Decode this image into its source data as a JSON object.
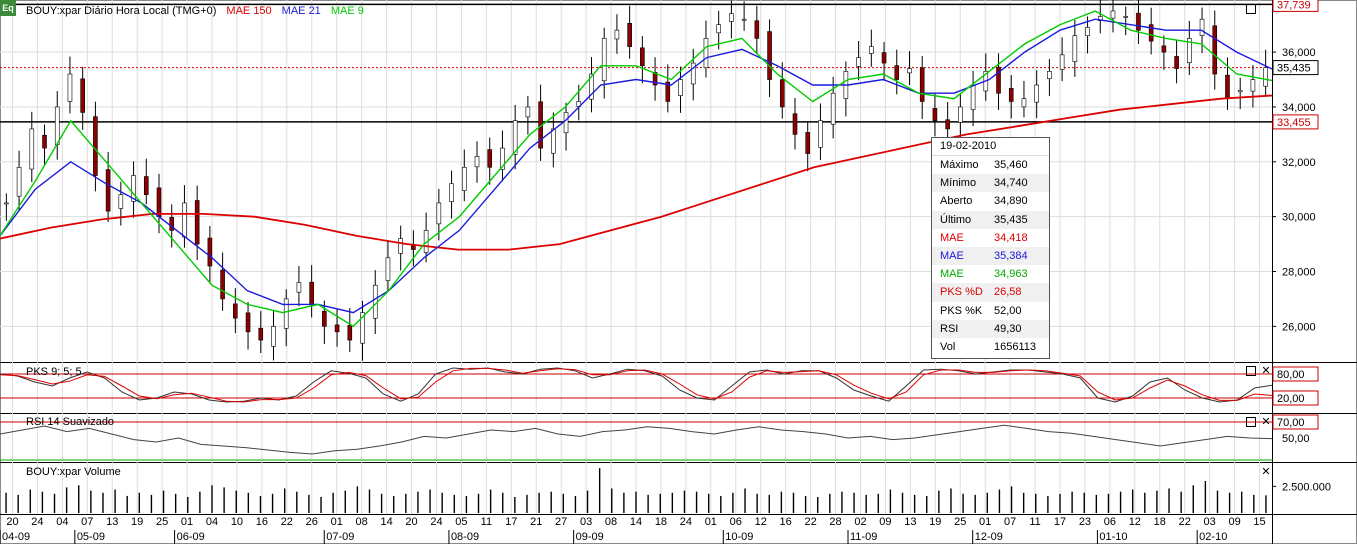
{
  "window": {
    "logo": "Eq"
  },
  "header": {
    "instrument": "BOUY:xpar Diário Hora Local (TMG+0)",
    "ind1": "MAE 150",
    "ind2": "MAE 21",
    "ind3": "MAE 9"
  },
  "colors": {
    "mae150": "#dd0000",
    "mae21": "#1a1adc",
    "mae9": "#00cc00",
    "candle_up": "#ffffff",
    "candle_down": "#8b0000",
    "hline": "#cc0000"
  },
  "chart_data": [
    {
      "type": "candlestick",
      "panel": "price",
      "ylim": [
        24.7,
        37.9
      ],
      "yticks": [
        "36,000",
        "34,000",
        "32,000",
        "30,000",
        "28,000",
        "26,000"
      ],
      "price_labels": [
        "37,739",
        "35,435",
        "33,455"
      ],
      "x_labels": [
        "20",
        "24",
        "04",
        "07",
        "13",
        "19",
        "25",
        "01",
        "04",
        "10",
        "16",
        "22",
        "26",
        "01",
        "08",
        "14",
        "20",
        "24",
        "05",
        "11",
        "17",
        "21",
        "27",
        "03",
        "08",
        "14",
        "18",
        "24",
        "01",
        "06",
        "12",
        "16",
        "22",
        "28",
        "02",
        "09",
        "13",
        "19",
        "25",
        "01",
        "07",
        "11",
        "17",
        "23",
        "06",
        "12",
        "18",
        "22",
        "03",
        "09",
        "15"
      ],
      "month_labels": [
        "04-09",
        "05-09",
        "06-09",
        "07-09",
        "08-09",
        "09-09",
        "10-09",
        "11-09",
        "12-09",
        "01-10",
        "02-10"
      ],
      "close_approx": [
        30.5,
        31.8,
        33.2,
        32.5,
        34.0,
        35.2,
        33.8,
        31.5,
        30.2,
        30.8,
        31.5,
        30.8,
        30.0,
        29.5,
        30.5,
        29.0,
        28.2,
        27.0,
        26.3,
        25.8,
        25.5,
        26.0,
        27.0,
        27.6,
        26.8,
        26.0,
        25.8,
        25.5,
        26.5,
        27.5,
        28.5,
        29.2,
        28.8,
        29.5,
        30.5,
        31.2,
        31.8,
        32.2,
        31.8,
        32.5,
        33.5,
        34.0,
        32.5,
        33.2,
        33.8,
        34.2,
        35.2,
        36.5,
        36.8,
        36.2,
        35.5,
        34.8,
        34.2,
        35.0,
        35.6,
        36.5,
        37.0,
        37.4,
        37.2,
        36.5,
        35.0,
        34.0,
        33.0,
        32.3,
        33.5,
        34.5,
        35.3,
        35.8,
        36.2,
        35.6,
        35.0,
        35.4,
        34.2,
        33.5,
        33.2,
        34.0,
        34.8,
        35.3,
        34.5,
        34.2,
        34.3,
        34.8,
        35.3,
        35.9,
        36.6,
        36.9,
        37.3,
        37.5,
        37.3,
        36.8,
        36.4,
        36.0,
        35.4,
        36.5,
        37.2,
        35.2,
        34.3,
        34.6,
        35.0,
        35.435
      ],
      "mae150_approx": [
        29.2,
        29.6,
        29.9,
        30.1,
        30.1,
        30.0,
        29.7,
        29.3,
        29.0,
        28.8,
        28.8,
        29.0,
        29.5,
        30.0,
        30.6,
        31.2,
        31.8,
        32.2,
        32.6,
        33.0,
        33.3,
        33.6,
        33.9,
        34.1,
        34.3,
        34.418
      ],
      "mae21_approx": [
        29.3,
        31.0,
        32.0,
        31.2,
        30.5,
        29.5,
        28.5,
        27.3,
        26.8,
        26.8,
        26.5,
        27.3,
        28.5,
        29.5,
        31.0,
        32.5,
        33.5,
        34.8,
        35.0,
        34.8,
        35.8,
        36.1,
        35.5,
        34.8,
        34.8,
        35.0,
        34.5,
        34.5,
        35.0,
        36.0,
        36.8,
        37.2,
        37.0,
        36.8,
        36.8,
        36.0,
        35.384
      ],
      "mae9_approx": [
        29.3,
        31.3,
        33.5,
        32.0,
        30.5,
        29.0,
        27.5,
        26.8,
        26.5,
        26.8,
        26.0,
        27.3,
        29.0,
        30.0,
        31.5,
        33.0,
        34.0,
        35.5,
        35.5,
        35.0,
        36.2,
        36.5,
        35.2,
        34.2,
        35.0,
        35.2,
        34.5,
        34.3,
        35.3,
        36.3,
        37.0,
        37.5,
        36.8,
        36.5,
        36.3,
        35.2,
        34.963
      ]
    },
    {
      "type": "line",
      "panel": "stochastic",
      "name": "PKS 9; 5; 5",
      "levels": [
        "80,00",
        "20,00"
      ],
      "k_approx": [
        80,
        75,
        60,
        50,
        70,
        85,
        70,
        35,
        15,
        20,
        35,
        30,
        15,
        10,
        12,
        20,
        15,
        25,
        60,
        88,
        82,
        70,
        30,
        12,
        30,
        80,
        95,
        92,
        95,
        85,
        80,
        92,
        95,
        88,
        70,
        80,
        92,
        88,
        75,
        40,
        20,
        15,
        50,
        85,
        90,
        80,
        88,
        88,
        70,
        40,
        25,
        12,
        50,
        90,
        92,
        88,
        80,
        85,
        90,
        90,
        85,
        80,
        70,
        20,
        10,
        25,
        60,
        70,
        40,
        20,
        10,
        15,
        45,
        52
      ],
      "d_approx": [
        78,
        76,
        66,
        55,
        62,
        78,
        74,
        50,
        25,
        18,
        28,
        32,
        22,
        12,
        10,
        16,
        16,
        20,
        45,
        78,
        84,
        76,
        45,
        18,
        22,
        60,
        88,
        94,
        94,
        90,
        82,
        88,
        93,
        91,
        78,
        78,
        88,
        90,
        80,
        55,
        28,
        18,
        35,
        72,
        88,
        84,
        86,
        88,
        78,
        52,
        32,
        18,
        35,
        78,
        90,
        90,
        84,
        84,
        88,
        90,
        88,
        82,
        75,
        35,
        15,
        20,
        45,
        65,
        50,
        28,
        14,
        14,
        30,
        26.58
      ]
    },
    {
      "type": "line",
      "panel": "rsi",
      "name": "RSI 14 Suavizado",
      "levels": [
        "70,00",
        "50,00"
      ],
      "values_approx": [
        55,
        60,
        65,
        58,
        62,
        55,
        48,
        45,
        50,
        42,
        40,
        38,
        35,
        32,
        30,
        34,
        36,
        40,
        45,
        52,
        50,
        55,
        60,
        58,
        62,
        55,
        52,
        58,
        60,
        64,
        62,
        58,
        55,
        60,
        64,
        60,
        58,
        55,
        50,
        52,
        48,
        50,
        54,
        58,
        62,
        66,
        62,
        58,
        56,
        52,
        48,
        44,
        40,
        44,
        48,
        52,
        50,
        49.3
      ]
    },
    {
      "type": "bar",
      "panel": "volume",
      "name": "BOUY:xpar Volume",
      "yticks": [
        "2.500.000"
      ],
      "values_approx": [
        1.9,
        1.7,
        2.2,
        2.0,
        1.8,
        2.4,
        2.6,
        2.1,
        1.9,
        2.2,
        1.6,
        1.9,
        1.7,
        2.1,
        1.8,
        1.5,
        2.0,
        2.6,
        2.4,
        2.1,
        1.9,
        1.6,
        1.8,
        2.3,
        2.0,
        1.7,
        1.5,
        1.9,
        2.1,
        2.5,
        2.2,
        1.8,
        1.6,
        1.8,
        2.0,
        2.2,
        1.9,
        1.7,
        1.6,
        1.8,
        2.2,
        1.9,
        1.5,
        1.7,
        1.9,
        2.0,
        1.8,
        1.6,
        2.1,
        4.2,
        2.3,
        1.9,
        2.0,
        1.7,
        1.8,
        1.9,
        2.1,
        2.0,
        1.8,
        1.6,
        1.9,
        2.3,
        1.8,
        1.7,
        2.0,
        1.9,
        1.6,
        1.5,
        1.8,
        2.0,
        1.9,
        1.7,
        1.8,
        2.2,
        1.9,
        1.7,
        1.6,
        2.1,
        2.3,
        1.8,
        1.7,
        1.9,
        2.2,
        2.5,
        1.9,
        1.8,
        1.6,
        1.8,
        2.0,
        1.9,
        1.7,
        1.8,
        2.0,
        2.2,
        1.9,
        2.1,
        2.3,
        2.0,
        2.6,
        3.0,
        2.1,
        1.9,
        2.0,
        1.7,
        1.656113
      ]
    }
  ],
  "tooltip": {
    "date": "19-02-2010",
    "rows": [
      {
        "k": "Máximo",
        "v": "35,460",
        "color": "#000000"
      },
      {
        "k": "Mínimo",
        "v": "34,740",
        "color": "#000000"
      },
      {
        "k": "Aberto",
        "v": "34,890",
        "color": "#000000"
      },
      {
        "k": "Último",
        "v": "35,435",
        "color": "#000000"
      },
      {
        "k": "MAE",
        "v": "34,418",
        "color": "#dd0000"
      },
      {
        "k": "MAE",
        "v": "35,384",
        "color": "#1a1adc"
      },
      {
        "k": "MAE",
        "v": "34,963",
        "color": "#00aa00"
      },
      {
        "k": "PKS %D",
        "v": "26,58",
        "color": "#dd0000"
      },
      {
        "k": "PKS %K",
        "v": "52,00",
        "color": "#000000"
      },
      {
        "k": "RSI",
        "v": "49,30",
        "color": "#000000"
      },
      {
        "k": "Vol",
        "v": "1656113",
        "color": "#000000"
      }
    ]
  },
  "panels": {
    "stoch_title": "PKS 9; 5; 5",
    "rsi_title": "RSI 14 Suavizado",
    "vol_title": "BOUY:xpar Volume"
  }
}
